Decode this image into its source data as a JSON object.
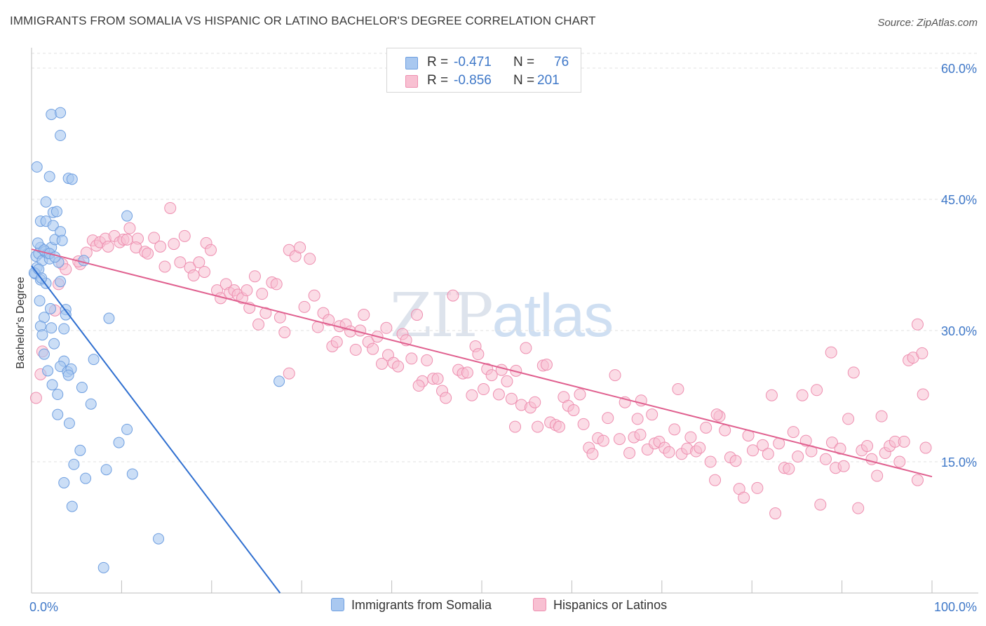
{
  "header": {
    "title": "IMMIGRANTS FROM SOMALIA VS HISPANIC OR LATINO BACHELOR'S DEGREE CORRELATION CHART",
    "source": "Source: ZipAtlas.com"
  },
  "watermark": {
    "zip": "ZIP",
    "atlas": "atlas"
  },
  "legend": {
    "rows": [
      {
        "r_label": "R =",
        "r_value": "-0.471",
        "n_label": "N =",
        "n_value": "76",
        "color": "#a9c8f0",
        "border": "#6f9fe0"
      },
      {
        "r_label": "R =",
        "r_value": "-0.856",
        "n_label": "N =",
        "n_value": "201",
        "color": "#f8c0d2",
        "border": "#ee8fb0"
      }
    ]
  },
  "bottom_legend": {
    "series1": "Immigrants from Somalia",
    "series2": "Hispanics or Latinos"
  },
  "chart_data": {
    "type": "scatter",
    "title": "IMMIGRANTS FROM SOMALIA VS HISPANIC OR LATINO BACHELOR'S DEGREE CORRELATION CHART",
    "xlabel": "",
    "ylabel": "Bachelor's Degree",
    "xlim": [
      0,
      100
    ],
    "ylim": [
      0,
      60
    ],
    "x_tick_labels": [
      "0.0%",
      "100.0%"
    ],
    "y_ticks": [
      15,
      30,
      45,
      60
    ],
    "y_tick_labels": [
      "15.0%",
      "30.0%",
      "45.0%",
      "60.0%"
    ],
    "grid": true,
    "series": [
      {
        "name": "Immigrants from Somalia",
        "color": "#6f9fe0",
        "fill": "#a9c8f0",
        "trend_color": "#2f6fd0",
        "trend": {
          "x": [
            0,
            27.6
          ],
          "y": [
            37.4,
            0
          ]
        },
        "points": [
          [
            0.5,
            38.5
          ],
          [
            0.6,
            37.2
          ],
          [
            0.4,
            36.5
          ],
          [
            0.8,
            38.8
          ],
          [
            1.0,
            39.5
          ],
          [
            1.2,
            38.0
          ],
          [
            0.7,
            40.0
          ],
          [
            1.5,
            39.0
          ],
          [
            1.8,
            38.8
          ],
          [
            2.0,
            38.2
          ],
          [
            1.0,
            35.8
          ],
          [
            1.6,
            35.4
          ],
          [
            2.2,
            39.5
          ],
          [
            2.6,
            40.4
          ],
          [
            3.0,
            37.8
          ],
          [
            3.2,
            35.6
          ],
          [
            0.6,
            48.7
          ],
          [
            2.0,
            47.6
          ],
          [
            4.1,
            47.4
          ],
          [
            4.5,
            47.3
          ],
          [
            2.2,
            54.7
          ],
          [
            3.2,
            54.9
          ],
          [
            3.2,
            52.3
          ],
          [
            1.6,
            44.7
          ],
          [
            2.4,
            43.5
          ],
          [
            1.0,
            42.5
          ],
          [
            1.6,
            42.5
          ],
          [
            2.4,
            42.0
          ],
          [
            2.8,
            43.6
          ],
          [
            3.2,
            41.3
          ],
          [
            3.4,
            40.3
          ],
          [
            1.4,
            39.2
          ],
          [
            2.0,
            38.8
          ],
          [
            2.1,
            32.5
          ],
          [
            1.4,
            31.5
          ],
          [
            1.0,
            30.5
          ],
          [
            2.2,
            30.3
          ],
          [
            2.5,
            28.5
          ],
          [
            3.6,
            30.2
          ],
          [
            3.8,
            32.4
          ],
          [
            1.2,
            29.5
          ],
          [
            1.4,
            27.3
          ],
          [
            3.6,
            26.5
          ],
          [
            3.2,
            25.9
          ],
          [
            1.8,
            25.4
          ],
          [
            2.3,
            23.8
          ],
          [
            4.0,
            25.3
          ],
          [
            4.4,
            25.6
          ],
          [
            4.1,
            24.9
          ],
          [
            2.9,
            22.7
          ],
          [
            5.6,
            23.5
          ],
          [
            6.6,
            21.6
          ],
          [
            2.9,
            20.4
          ],
          [
            4.2,
            19.4
          ],
          [
            5.4,
            16.3
          ],
          [
            4.7,
            14.7
          ],
          [
            3.6,
            12.6
          ],
          [
            6.0,
            13.1
          ],
          [
            4.5,
            9.9
          ],
          [
            8.6,
            31.4
          ],
          [
            6.9,
            26.7
          ],
          [
            10.6,
            43.1
          ],
          [
            9.7,
            17.2
          ],
          [
            10.6,
            18.7
          ],
          [
            11.2,
            13.6
          ],
          [
            8.3,
            14.1
          ],
          [
            14.1,
            6.2
          ],
          [
            8.0,
            2.9
          ],
          [
            27.5,
            24.2
          ],
          [
            5.8,
            38.0
          ],
          [
            0.3,
            36.6
          ],
          [
            0.8,
            37.0
          ],
          [
            1.1,
            36.0
          ],
          [
            2.6,
            38.4
          ],
          [
            0.9,
            33.4
          ],
          [
            3.8,
            31.8
          ]
        ]
      },
      {
        "name": "Hispanics or Latinos",
        "color": "#ee8fb0",
        "fill": "#f8c0d2",
        "trend_color": "#e0608f",
        "trend": {
          "x": [
            0,
            100
          ],
          "y": [
            39.3,
            13.3
          ]
        },
        "points": [
          [
            0.5,
            22.3
          ],
          [
            1.0,
            25.0
          ],
          [
            1.2,
            27.6
          ],
          [
            2.6,
            32.3
          ],
          [
            3.0,
            35.3
          ],
          [
            3.4,
            37.6
          ],
          [
            3.8,
            37.0
          ],
          [
            5.4,
            37.6
          ],
          [
            5.2,
            37.9
          ],
          [
            6.1,
            38.9
          ],
          [
            6.8,
            40.3
          ],
          [
            7.2,
            39.7
          ],
          [
            7.6,
            40.1
          ],
          [
            8.2,
            40.5
          ],
          [
            8.5,
            39.6
          ],
          [
            9.2,
            40.8
          ],
          [
            9.8,
            40.1
          ],
          [
            10.2,
            40.4
          ],
          [
            10.6,
            40.4
          ],
          [
            10.9,
            41.7
          ],
          [
            11.8,
            40.5
          ],
          [
            11.6,
            39.5
          ],
          [
            12.6,
            39.0
          ],
          [
            12.9,
            38.8
          ],
          [
            13.6,
            40.6
          ],
          [
            14.3,
            39.6
          ],
          [
            14.8,
            37.3
          ],
          [
            15.4,
            44.0
          ],
          [
            15.8,
            39.9
          ],
          [
            16.5,
            37.8
          ],
          [
            17.0,
            40.8
          ],
          [
            17.6,
            37.2
          ],
          [
            18.0,
            36.3
          ],
          [
            18.6,
            37.8
          ],
          [
            19.2,
            36.7
          ],
          [
            19.4,
            40.0
          ],
          [
            19.9,
            39.2
          ],
          [
            20.6,
            34.6
          ],
          [
            21.0,
            33.7
          ],
          [
            21.6,
            35.3
          ],
          [
            22.0,
            34.3
          ],
          [
            22.5,
            34.6
          ],
          [
            22.9,
            34.1
          ],
          [
            23.4,
            33.7
          ],
          [
            23.9,
            34.6
          ],
          [
            24.2,
            32.6
          ],
          [
            24.8,
            36.2
          ],
          [
            25.2,
            30.7
          ],
          [
            25.6,
            34.2
          ],
          [
            26.0,
            32.0
          ],
          [
            26.7,
            35.5
          ],
          [
            27.2,
            35.3
          ],
          [
            27.6,
            31.5
          ],
          [
            28.1,
            29.8
          ],
          [
            28.6,
            39.2
          ],
          [
            29.3,
            38.5
          ],
          [
            29.8,
            39.5
          ],
          [
            30.3,
            32.7
          ],
          [
            30.9,
            38.2
          ],
          [
            31.4,
            34.0
          ],
          [
            31.8,
            30.4
          ],
          [
            32.4,
            32.0
          ],
          [
            33.0,
            31.2
          ],
          [
            33.4,
            28.2
          ],
          [
            33.9,
            28.7
          ],
          [
            34.2,
            30.5
          ],
          [
            34.9,
            30.7
          ],
          [
            35.4,
            29.9
          ],
          [
            36.0,
            27.8
          ],
          [
            36.5,
            30.0
          ],
          [
            36.9,
            31.8
          ],
          [
            37.4,
            28.7
          ],
          [
            37.9,
            27.9
          ],
          [
            38.4,
            29.3
          ],
          [
            38.9,
            26.2
          ],
          [
            39.4,
            30.3
          ],
          [
            39.6,
            27.2
          ],
          [
            40.2,
            26.3
          ],
          [
            40.7,
            25.9
          ],
          [
            41.2,
            29.6
          ],
          [
            41.6,
            28.9
          ],
          [
            42.2,
            26.8
          ],
          [
            42.8,
            31.8
          ],
          [
            43.4,
            24.2
          ],
          [
            43.9,
            26.6
          ],
          [
            44.6,
            24.5
          ],
          [
            45.1,
            24.5
          ],
          [
            45.6,
            23.1
          ],
          [
            46.0,
            22.3
          ],
          [
            46.8,
            34.0
          ],
          [
            47.4,
            25.5
          ],
          [
            47.9,
            25.1
          ],
          [
            48.4,
            25.2
          ],
          [
            48.9,
            22.6
          ],
          [
            49.3,
            28.2
          ],
          [
            49.6,
            27.3
          ],
          [
            50.2,
            23.3
          ],
          [
            50.6,
            25.6
          ],
          [
            51.1,
            24.9
          ],
          [
            51.9,
            22.7
          ],
          [
            52.2,
            25.5
          ],
          [
            52.8,
            24.2
          ],
          [
            53.3,
            22.2
          ],
          [
            53.8,
            25.4
          ],
          [
            54.4,
            21.5
          ],
          [
            54.9,
            28.0
          ],
          [
            55.4,
            21.2
          ],
          [
            55.9,
            21.8
          ],
          [
            56.2,
            19.0
          ],
          [
            56.8,
            26.0
          ],
          [
            57.2,
            26.1
          ],
          [
            57.6,
            19.5
          ],
          [
            58.2,
            19.2
          ],
          [
            58.6,
            19.0
          ],
          [
            59.1,
            22.4
          ],
          [
            59.6,
            21.4
          ],
          [
            60.2,
            20.9
          ],
          [
            60.9,
            22.7
          ],
          [
            61.3,
            19.3
          ],
          [
            61.9,
            16.6
          ],
          [
            62.3,
            15.9
          ],
          [
            62.9,
            17.7
          ],
          [
            63.5,
            17.4
          ],
          [
            64.0,
            20.0
          ],
          [
            64.8,
            24.9
          ],
          [
            65.3,
            17.6
          ],
          [
            65.9,
            21.8
          ],
          [
            66.4,
            16.0
          ],
          [
            66.9,
            17.8
          ],
          [
            67.3,
            19.9
          ],
          [
            67.6,
            18.1
          ],
          [
            68.4,
            16.4
          ],
          [
            68.9,
            20.4
          ],
          [
            69.2,
            17.1
          ],
          [
            69.7,
            17.3
          ],
          [
            70.3,
            16.6
          ],
          [
            70.8,
            16.1
          ],
          [
            71.4,
            18.7
          ],
          [
            71.8,
            23.3
          ],
          [
            72.2,
            15.9
          ],
          [
            72.8,
            16.5
          ],
          [
            73.2,
            17.8
          ],
          [
            73.8,
            16.2
          ],
          [
            74.2,
            16.6
          ],
          [
            74.9,
            18.9
          ],
          [
            75.4,
            15.0
          ],
          [
            75.9,
            12.9
          ],
          [
            76.4,
            20.2
          ],
          [
            77.0,
            18.6
          ],
          [
            77.6,
            15.5
          ],
          [
            78.2,
            15.1
          ],
          [
            78.6,
            11.9
          ],
          [
            79.1,
            10.9
          ],
          [
            79.6,
            18.0
          ],
          [
            80.1,
            16.3
          ],
          [
            80.6,
            12.0
          ],
          [
            81.2,
            16.9
          ],
          [
            81.8,
            15.9
          ],
          [
            82.2,
            22.6
          ],
          [
            82.6,
            9.1
          ],
          [
            83.0,
            17.1
          ],
          [
            83.6,
            14.3
          ],
          [
            84.1,
            14.2
          ],
          [
            84.6,
            18.4
          ],
          [
            85.1,
            15.6
          ],
          [
            85.6,
            22.6
          ],
          [
            86.0,
            17.4
          ],
          [
            86.6,
            16.2
          ],
          [
            87.2,
            23.2
          ],
          [
            87.6,
            10.1
          ],
          [
            88.2,
            15.3
          ],
          [
            88.9,
            17.2
          ],
          [
            89.3,
            14.3
          ],
          [
            89.8,
            16.5
          ],
          [
            90.2,
            14.5
          ],
          [
            90.7,
            19.9
          ],
          [
            91.3,
            25.2
          ],
          [
            91.8,
            9.7
          ],
          [
            92.2,
            16.3
          ],
          [
            92.8,
            16.8
          ],
          [
            93.3,
            15.3
          ],
          [
            93.9,
            13.4
          ],
          [
            94.4,
            20.2
          ],
          [
            94.8,
            16.0
          ],
          [
            95.3,
            16.8
          ],
          [
            95.9,
            17.3
          ],
          [
            96.4,
            15.0
          ],
          [
            96.9,
            17.3
          ],
          [
            97.4,
            26.6
          ],
          [
            97.9,
            26.9
          ],
          [
            98.4,
            12.9
          ],
          [
            99.0,
            22.7
          ],
          [
            98.4,
            30.7
          ],
          [
            98.9,
            27.4
          ],
          [
            99.3,
            16.6
          ],
          [
            28.6,
            25.1
          ],
          [
            43.0,
            23.7
          ],
          [
            53.7,
            19.0
          ],
          [
            67.7,
            22.0
          ],
          [
            76.1,
            20.4
          ],
          [
            88.8,
            27.5
          ]
        ]
      }
    ]
  }
}
